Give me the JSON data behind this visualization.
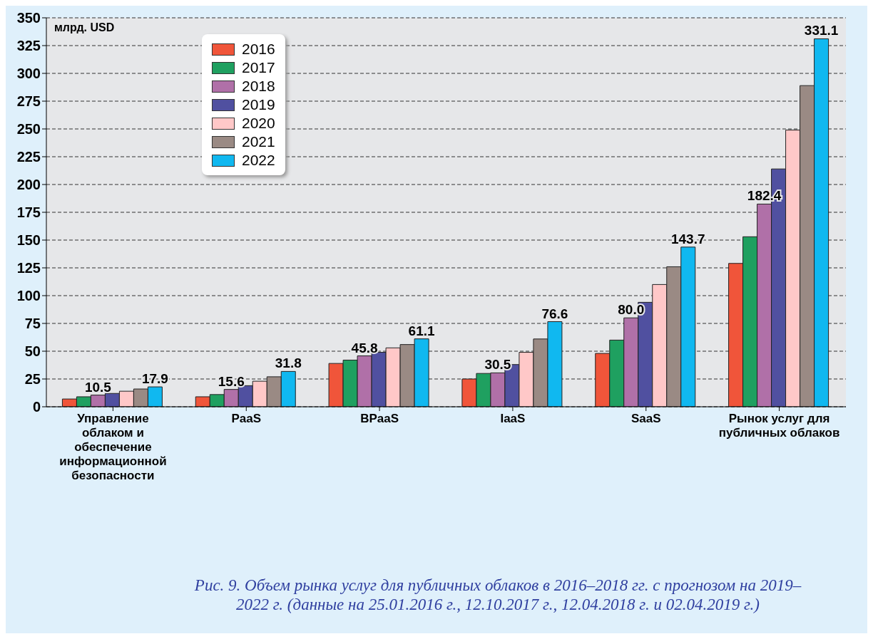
{
  "chart_data": {
    "type": "bar",
    "ylabel": "млрд. USD",
    "categories": [
      "Управление облаком и обеспечение информационной безопасности",
      "PaaS",
      "BPaaS",
      "IaaS",
      "SaaS",
      "Рынок услуг для публичных облаков"
    ],
    "series": [
      {
        "name": "2016",
        "color": "#f0553a",
        "values": [
          7,
          9,
          39,
          25,
          48,
          129
        ]
      },
      {
        "name": "2017",
        "color": "#1fa060",
        "values": [
          9,
          11,
          42,
          30,
          60,
          153
        ]
      },
      {
        "name": "2018",
        "color": "#b070a8",
        "values": [
          10.5,
          15.6,
          45.8,
          30.5,
          80.0,
          182.4
        ],
        "value_labels": [
          "10.5",
          "15.6",
          "45.8",
          "30.5",
          "80.0",
          "182.4"
        ]
      },
      {
        "name": "2019",
        "color": "#5050a0",
        "values": [
          12,
          19,
          49,
          38,
          94,
          214
        ]
      },
      {
        "name": "2020",
        "color": "#ffc8c8",
        "values": [
          14,
          23,
          53,
          49,
          110,
          249
        ]
      },
      {
        "name": "2021",
        "color": "#9a8a84",
        "values": [
          16,
          27,
          56,
          61,
          126,
          289
        ]
      },
      {
        "name": "2022",
        "color": "#10b8f0",
        "values": [
          17.9,
          31.8,
          61.1,
          76.6,
          143.7,
          331.1
        ],
        "value_labels": [
          "17.9",
          "31.8",
          "61.1",
          "76.6",
          "143.7",
          "331.1"
        ]
      }
    ],
    "ylim": [
      0,
      350
    ],
    "yticks": [
      0,
      25,
      50,
      75,
      100,
      125,
      150,
      175,
      200,
      225,
      250,
      275,
      300,
      325,
      350
    ],
    "grid": "y",
    "legend": "top left",
    "annotations": [
      "Рис. 9. Объем рынка услуг для публичных облаков в 2016–2018 гг. с прогнозом на 2019–2022 г. (данные на 25.01.2016 г., 12.10.2017 г., 12.04.2018 г. и 02.04.2019 г.)"
    ]
  }
}
